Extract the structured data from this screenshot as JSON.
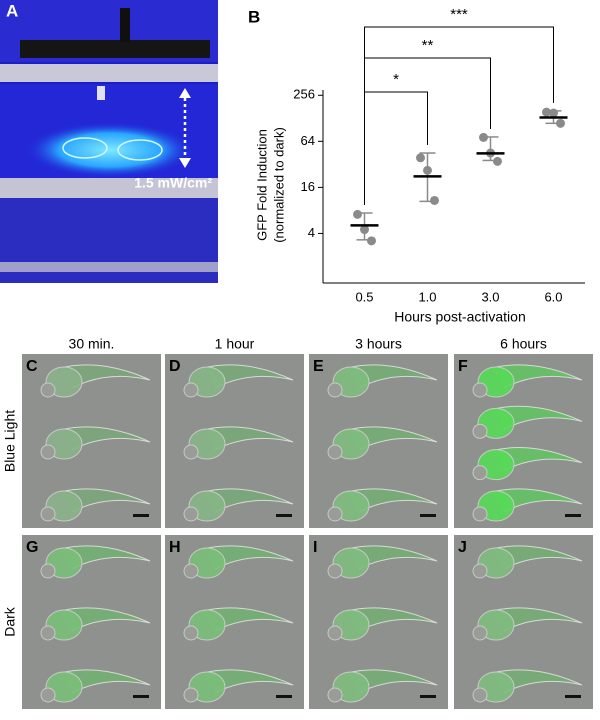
{
  "panel_a": {
    "label": "A",
    "annotation": "1.5 mW/cm²"
  },
  "chart_data": {
    "type": "dotplot",
    "label": "B",
    "ylabel": [
      "GFP Fold Induction",
      "(normalized to dark)"
    ],
    "xlabel": "Hours post-activation",
    "categories": [
      "0.5",
      "1.0",
      "3.0",
      "6.0"
    ],
    "points": [
      [
        7.1,
        4.5,
        3.2
      ],
      [
        39,
        26.7,
        10.8
      ],
      [
        72,
        45,
        35
      ],
      [
        154,
        150,
        110
      ]
    ],
    "means": [
      5.1,
      22.3,
      44.6,
      131
    ],
    "error_low": [
      3.3,
      10.5,
      36,
      110
    ],
    "error_high": [
      7.4,
      45,
      73,
      160
    ],
    "point_color": "#8a8a8a",
    "mean_color": "#000000",
    "yscale": "log",
    "ylim": [
      0.9,
      300
    ],
    "yticks": [
      4,
      16,
      64,
      256
    ],
    "significance": [
      {
        "label": "*",
        "from": "0.5",
        "to": "1.0"
      },
      {
        "label": "**",
        "from": "0.5",
        "to": "3.0"
      },
      {
        "label": "***",
        "from": "0.5",
        "to": "6.0"
      }
    ]
  },
  "panels": {
    "columns": [
      "30 min.",
      "1 hour",
      "3 hours",
      "6 hours"
    ],
    "rows": [
      "Blue Light",
      "Dark"
    ],
    "letters": [
      [
        "C",
        "D",
        "E",
        "F"
      ],
      [
        "G",
        "H",
        "I",
        "J"
      ]
    ]
  }
}
